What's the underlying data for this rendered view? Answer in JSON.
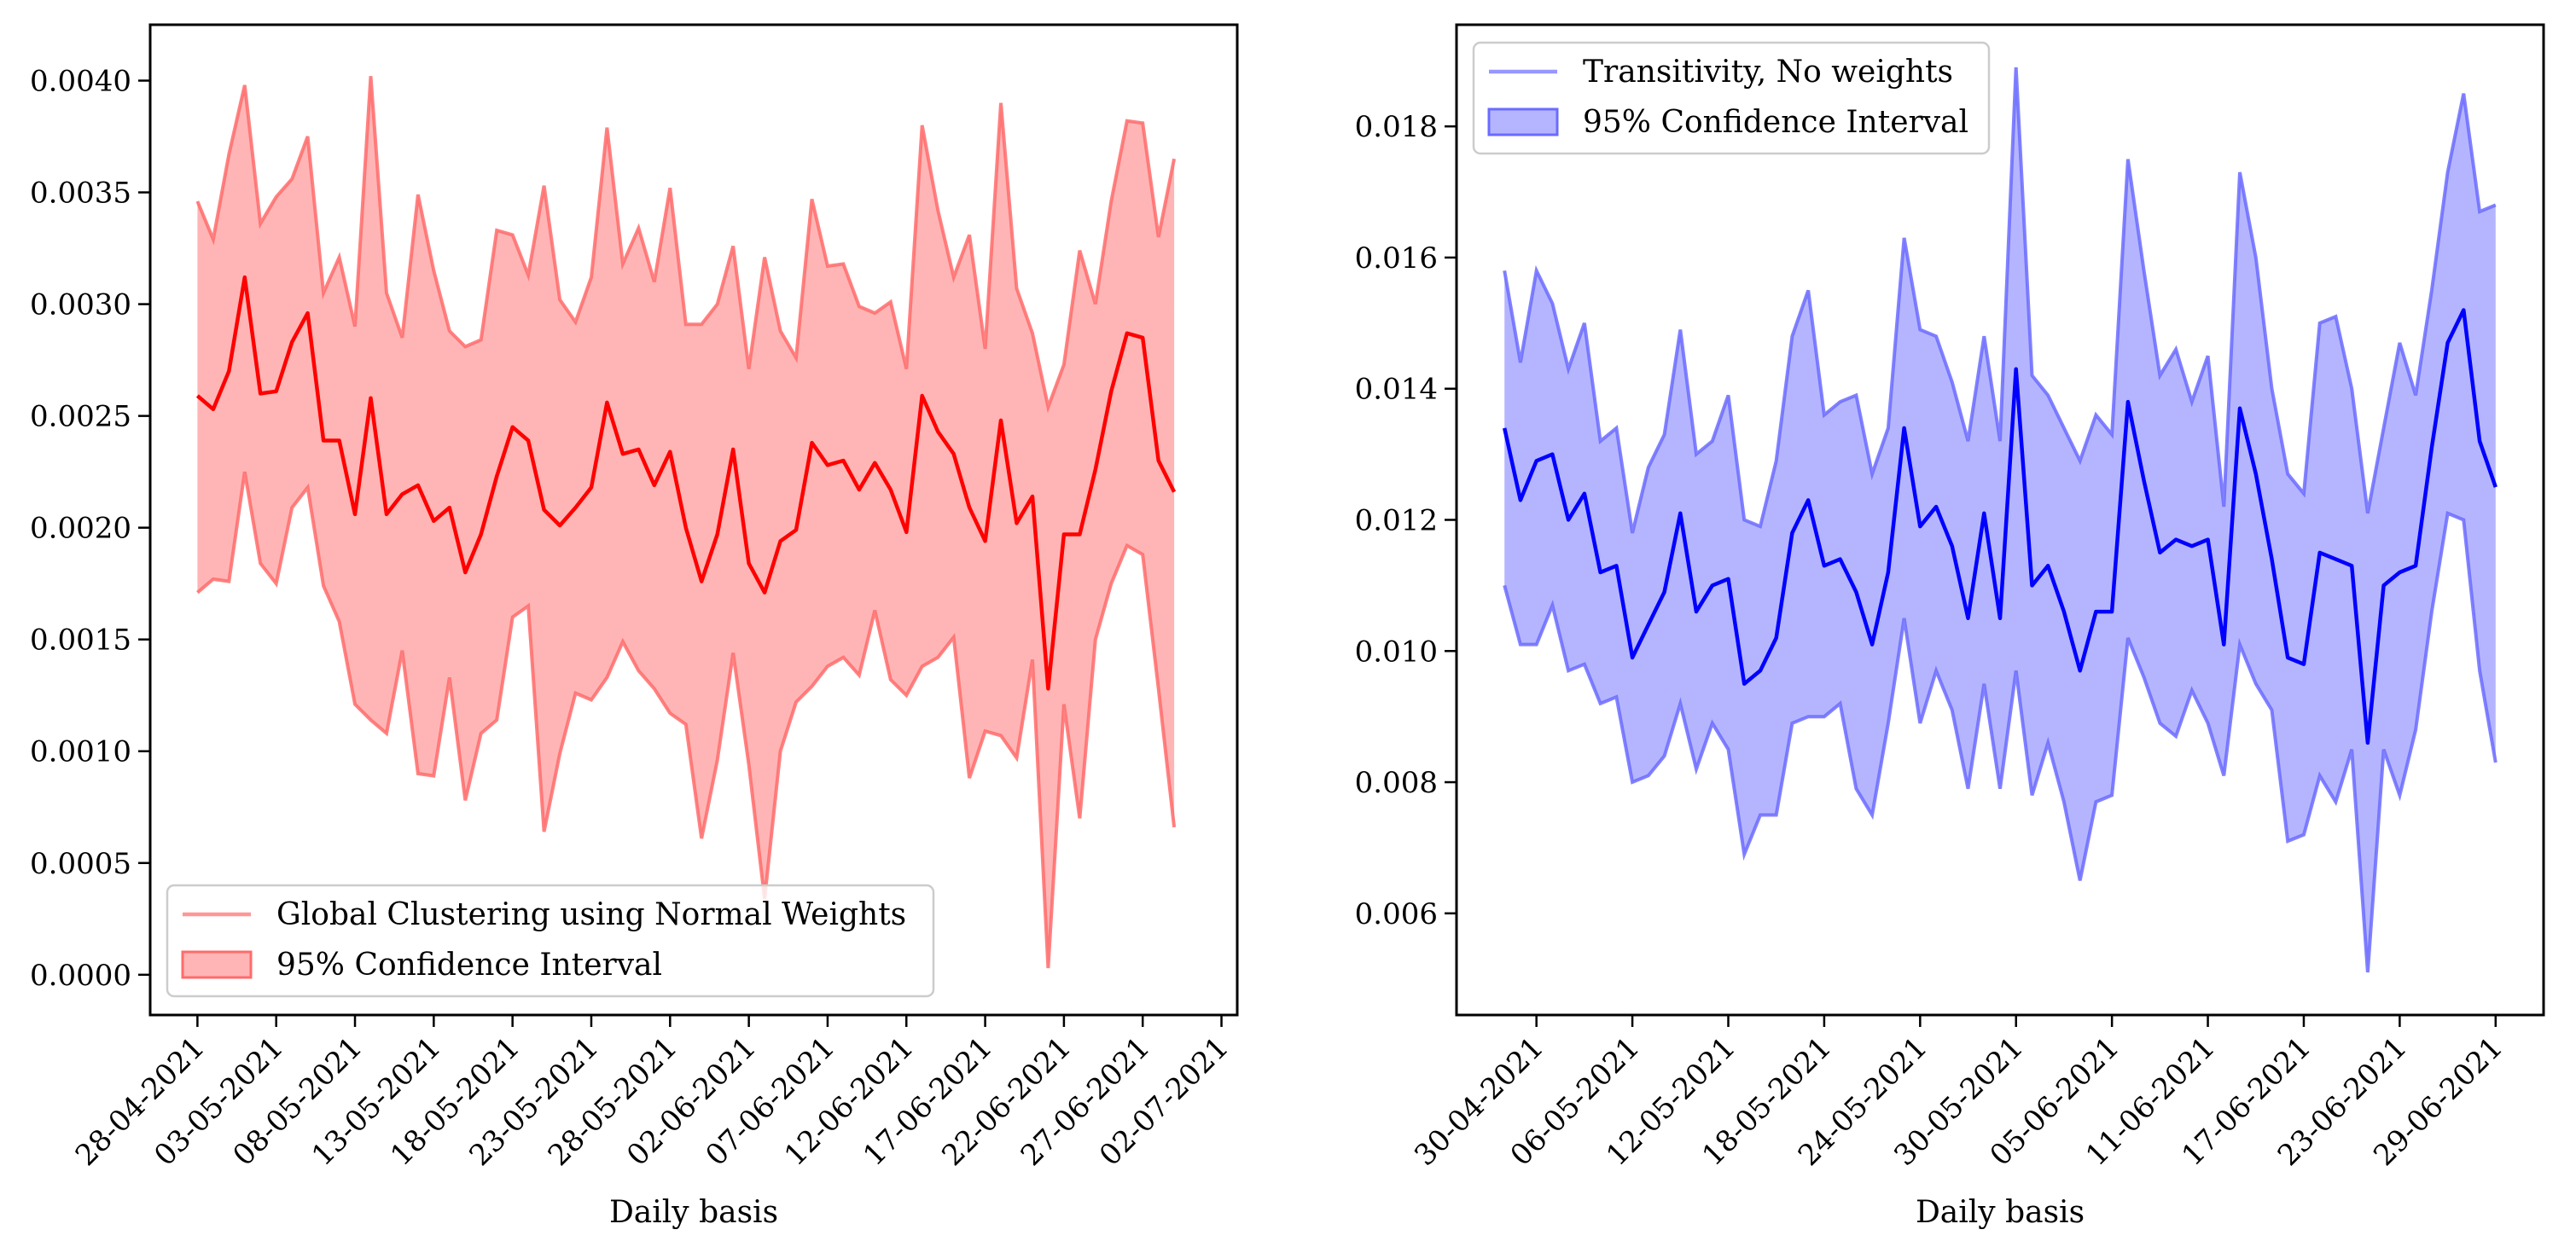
{
  "chart_data": [
    {
      "type": "line",
      "xlabel": "Daily basis",
      "ylabel": "",
      "x_start": "2021-04-28",
      "x_end": "2021-06-30",
      "xlim": [
        "2021-04-25",
        "2021-07-03"
      ],
      "ylim": [
        -0.00018,
        0.00425
      ],
      "x_ticks": [
        "28-04-2021",
        "03-05-2021",
        "08-05-2021",
        "13-05-2021",
        "18-05-2021",
        "23-05-2021",
        "28-05-2021",
        "02-06-2021",
        "07-06-2021",
        "12-06-2021",
        "17-06-2021",
        "22-06-2021",
        "27-06-2021",
        "02-07-2021"
      ],
      "y_ticks": [
        "0.0000",
        "0.0005",
        "0.0010",
        "0.0015",
        "0.0020",
        "0.0025",
        "0.0030",
        "0.0035",
        "0.0040"
      ],
      "grid": false,
      "legend_position": "lower-left",
      "colors": {
        "line": "#ff0000",
        "band": "#ff6b6b"
      },
      "series": [
        {
          "name": "Global Clustering using Normal Weights",
          "role": "line",
          "values": [
            0.00259,
            0.00253,
            0.0027,
            0.00312,
            0.0026,
            0.00261,
            0.00283,
            0.00296,
            0.00239,
            0.00239,
            0.00206,
            0.00258,
            0.00206,
            0.00215,
            0.00219,
            0.00203,
            0.00209,
            0.0018,
            0.00197,
            0.00223,
            0.00245,
            0.00239,
            0.00208,
            0.00201,
            0.00209,
            0.00218,
            0.00256,
            0.00233,
            0.00235,
            0.00219,
            0.00234,
            0.002,
            0.00176,
            0.00197,
            0.00235,
            0.00184,
            0.00171,
            0.00194,
            0.00199,
            0.00238,
            0.00228,
            0.0023,
            0.00217,
            0.00229,
            0.00217,
            0.00198,
            0.00259,
            0.00243,
            0.00233,
            0.00209,
            0.00194,
            0.00248,
            0.00202,
            0.00214,
            0.00128,
            0.00197,
            0.00197,
            0.00226,
            0.00261,
            0.00287,
            0.00285,
            0.0023,
            0.00216
          ]
        },
        {
          "name": "95% Confidence Interval",
          "role": "band",
          "lower": [
            0.00171,
            0.00177,
            0.00176,
            0.00225,
            0.00184,
            0.00175,
            0.00209,
            0.00218,
            0.00174,
            0.00158,
            0.00121,
            0.00114,
            0.00108,
            0.00145,
            0.0009,
            0.00089,
            0.00133,
            0.00078,
            0.00108,
            0.00114,
            0.0016,
            0.00165,
            0.00064,
            0.00099,
            0.00126,
            0.00123,
            0.00133,
            0.00149,
            0.00136,
            0.00128,
            0.00117,
            0.00112,
            0.00061,
            0.00096,
            0.00144,
            0.00094,
            0.00034,
            0.001,
            0.00122,
            0.00129,
            0.00138,
            0.00142,
            0.00134,
            0.00163,
            0.00132,
            0.00125,
            0.00138,
            0.00142,
            0.00151,
            0.00088,
            0.00109,
            0.00107,
            0.00097,
            0.00141,
            3e-05,
            0.00121,
            0.0007,
            0.0015,
            0.00175,
            0.00192,
            0.00188,
            0.00128,
            0.00066
          ],
          "upper": [
            0.00346,
            0.00329,
            0.00367,
            0.00398,
            0.00336,
            0.00348,
            0.00356,
            0.00375,
            0.00305,
            0.00321,
            0.0029,
            0.00402,
            0.00305,
            0.00285,
            0.00349,
            0.00315,
            0.00288,
            0.00281,
            0.00284,
            0.00333,
            0.00331,
            0.00313,
            0.00353,
            0.00302,
            0.00292,
            0.00312,
            0.00379,
            0.00318,
            0.00334,
            0.0031,
            0.00352,
            0.00291,
            0.00291,
            0.003,
            0.00326,
            0.00271,
            0.00321,
            0.00288,
            0.00276,
            0.00347,
            0.00317,
            0.00318,
            0.00299,
            0.00296,
            0.00301,
            0.00271,
            0.0038,
            0.00342,
            0.00312,
            0.00331,
            0.0028,
            0.0039,
            0.00307,
            0.00287,
            0.00254,
            0.00273,
            0.00324,
            0.003,
            0.00346,
            0.00382,
            0.00381,
            0.0033,
            0.00365
          ]
        }
      ]
    },
    {
      "type": "line",
      "xlabel": "Daily basis",
      "ylabel": "",
      "x_start": "2021-04-28",
      "x_end": "2021-06-29",
      "xlim": [
        "2021-04-25",
        "2021-07-02"
      ],
      "ylim": [
        0.00445,
        0.01955
      ],
      "x_ticks": [
        "30-04-2021",
        "06-05-2021",
        "12-05-2021",
        "18-05-2021",
        "24-05-2021",
        "30-05-2021",
        "05-06-2021",
        "11-06-2021",
        "17-06-2021",
        "23-06-2021",
        "29-06-2021"
      ],
      "y_ticks": [
        "0.006",
        "0.008",
        "0.010",
        "0.012",
        "0.014",
        "0.016",
        "0.018"
      ],
      "grid": false,
      "legend_position": "upper-left",
      "colors": {
        "line": "#0000ff",
        "band": "#6b6bff"
      },
      "series": [
        {
          "name": "Transitivity, No weights",
          "role": "line",
          "values": [
            0.0134,
            0.0123,
            0.0129,
            0.013,
            0.012,
            0.0124,
            0.0112,
            0.0113,
            0.0099,
            0.0104,
            0.0109,
            0.0121,
            0.0106,
            0.011,
            0.0111,
            0.0095,
            0.0097,
            0.0102,
            0.0118,
            0.0123,
            0.0113,
            0.0114,
            0.0109,
            0.0101,
            0.0112,
            0.0134,
            0.0119,
            0.0122,
            0.0116,
            0.0105,
            0.0121,
            0.0105,
            0.0143,
            0.011,
            0.0113,
            0.0106,
            0.0097,
            0.0106,
            0.0106,
            0.0138,
            0.0126,
            0.0115,
            0.0117,
            0.0116,
            0.0117,
            0.0101,
            0.0137,
            0.0127,
            0.0114,
            0.0099,
            0.0098,
            0.0115,
            0.0114,
            0.0113,
            0.0086,
            0.011,
            0.0112,
            0.0113,
            0.0131,
            0.0147,
            0.0152,
            0.0132,
            0.0125
          ]
        },
        {
          "name": "95% Confidence Interval",
          "role": "band",
          "lower": [
            0.011,
            0.0101,
            0.0101,
            0.0107,
            0.0097,
            0.0098,
            0.0092,
            0.0093,
            0.008,
            0.0081,
            0.0084,
            0.0092,
            0.0082,
            0.0089,
            0.0085,
            0.0069,
            0.0075,
            0.0075,
            0.0089,
            0.009,
            0.009,
            0.0092,
            0.0079,
            0.0075,
            0.0089,
            0.0105,
            0.0089,
            0.0097,
            0.0091,
            0.0079,
            0.0095,
            0.0079,
            0.0097,
            0.0078,
            0.0086,
            0.0077,
            0.0065,
            0.0077,
            0.0078,
            0.0102,
            0.0096,
            0.0089,
            0.0087,
            0.0094,
            0.0089,
            0.0081,
            0.0101,
            0.0095,
            0.0091,
            0.0071,
            0.0072,
            0.0081,
            0.0077,
            0.0085,
            0.0051,
            0.0085,
            0.0078,
            0.0088,
            0.0106,
            0.0121,
            0.012,
            0.0097,
            0.0083
          ],
          "upper": [
            0.0158,
            0.0144,
            0.0158,
            0.0153,
            0.0143,
            0.015,
            0.0132,
            0.0134,
            0.0118,
            0.0128,
            0.0133,
            0.0149,
            0.013,
            0.0132,
            0.0139,
            0.012,
            0.0119,
            0.0129,
            0.0148,
            0.0155,
            0.0136,
            0.0138,
            0.0139,
            0.0127,
            0.0134,
            0.0163,
            0.0149,
            0.0148,
            0.0141,
            0.0132,
            0.0148,
            0.0132,
            0.0189,
            0.0142,
            0.0139,
            0.0134,
            0.0129,
            0.0136,
            0.0133,
            0.0175,
            0.0158,
            0.0142,
            0.0146,
            0.0138,
            0.0145,
            0.0122,
            0.0173,
            0.016,
            0.014,
            0.0127,
            0.0124,
            0.015,
            0.0151,
            0.014,
            0.0121,
            0.0134,
            0.0147,
            0.0139,
            0.0155,
            0.0173,
            0.0185,
            0.0167,
            0.0168
          ]
        }
      ]
    }
  ]
}
